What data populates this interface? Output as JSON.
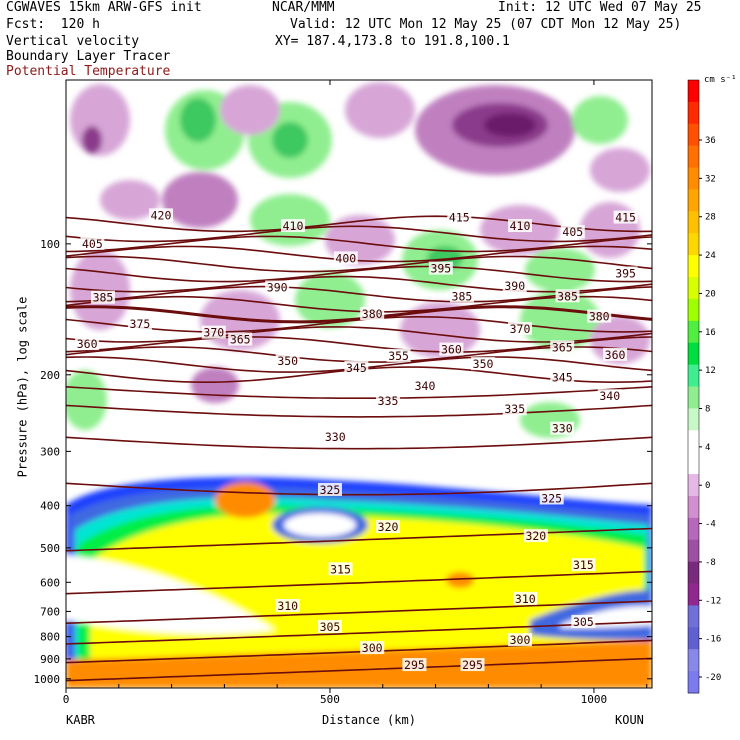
{
  "header": {
    "left_line1": "CGWAVES 15km ARW-GFS init",
    "left_line2": "Fcst:  120 h",
    "center_line1": "NCAR/MMM",
    "right_line1": "Init: 12 UTC Wed 07 May 25",
    "valid_line": "Valid: 12 UTC Mon 12 May 25 (07 CDT Mon 12 May 25)",
    "xy_line": "XY= 187.4,173.8 to 191.8,100.1",
    "field1": "Vertical velocity",
    "field2": "Boundary Layer Tracer",
    "field3": "Potential Temperature"
  },
  "colors": {
    "theta_line": "#6b0d0d",
    "field3_text": "#8b1a1a",
    "bl_blue_dark": "#1f3fff",
    "bl_blue": "#4169e1",
    "bl_cyan": "#00e5d4",
    "bl_green": "#00ee44",
    "bl_yellow": "#ffff00",
    "bl_orange": "#ff8c00",
    "w_green": "#90ee90",
    "w_purple": "#c080c0"
  },
  "chart_data": {
    "type": "heatmap",
    "xlabel": "Distance (km)",
    "ylabel": "Pressure (hPa), log scale",
    "x_ticks": [
      0,
      500,
      1000
    ],
    "xlim": [
      0,
      1110
    ],
    "y_ticks": [
      100,
      200,
      300,
      400,
      500,
      600,
      700,
      800,
      900,
      1000
    ],
    "y_scale": "log",
    "x_endpoints": [
      "KABR",
      "KOUN"
    ],
    "colorbar": {
      "unit": "cm s⁻¹",
      "ticks": [
        36,
        32,
        28,
        24,
        20,
        16,
        12,
        8,
        4,
        0,
        -4,
        -8,
        -12,
        -16,
        -20
      ],
      "colors": [
        "#ff0000",
        "#ff2a00",
        "#ff5000",
        "#ff7000",
        "#ff8c00",
        "#ffa500",
        "#ffc000",
        "#ffd700",
        "#ffff00",
        "#d8ff00",
        "#a0ff00",
        "#50ee40",
        "#00dd40",
        "#40ee90",
        "#90ee90",
        "#c8f8c8",
        "#ffffff",
        "#ffffff",
        "#e6b8e6",
        "#d090d0",
        "#b868b8",
        "#a050a0",
        "#7a2a7a",
        "#902890",
        "#7070d8",
        "#6060d0",
        "#8888e8",
        "#7b7bef"
      ]
    },
    "contour_labels": [
      {
        "x": 180,
        "p": 86,
        "v": "420"
      },
      {
        "x": 430,
        "p": 91,
        "v": "410"
      },
      {
        "x": 745,
        "p": 87,
        "v": "415"
      },
      {
        "x": 860,
        "p": 91,
        "v": "410"
      },
      {
        "x": 960,
        "p": 94,
        "v": "405"
      },
      {
        "x": 1060,
        "p": 87,
        "v": "415"
      },
      {
        "x": 50,
        "p": 100,
        "v": "405"
      },
      {
        "x": 530,
        "p": 108,
        "v": "400"
      },
      {
        "x": 710,
        "p": 114,
        "v": "395"
      },
      {
        "x": 1060,
        "p": 117,
        "v": "395"
      },
      {
        "x": 400,
        "p": 126,
        "v": "390"
      },
      {
        "x": 850,
        "p": 125,
        "v": "390"
      },
      {
        "x": 70,
        "p": 133,
        "v": "385"
      },
      {
        "x": 750,
        "p": 132,
        "v": "385"
      },
      {
        "x": 950,
        "p": 132,
        "v": "385"
      },
      {
        "x": 580,
        "p": 145,
        "v": "380"
      },
      {
        "x": 1010,
        "p": 147,
        "v": "380"
      },
      {
        "x": 140,
        "p": 153,
        "v": "375"
      },
      {
        "x": 280,
        "p": 160,
        "v": "370"
      },
      {
        "x": 860,
        "p": 157,
        "v": "370"
      },
      {
        "x": 40,
        "p": 170,
        "v": "360"
      },
      {
        "x": 330,
        "p": 166,
        "v": "365"
      },
      {
        "x": 730,
        "p": 175,
        "v": "360"
      },
      {
        "x": 940,
        "p": 173,
        "v": "365"
      },
      {
        "x": 1040,
        "p": 180,
        "v": "360"
      },
      {
        "x": 420,
        "p": 186,
        "v": "350"
      },
      {
        "x": 550,
        "p": 193,
        "v": "345"
      },
      {
        "x": 630,
        "p": 181,
        "v": "355"
      },
      {
        "x": 790,
        "p": 189,
        "v": "350"
      },
      {
        "x": 940,
        "p": 203,
        "v": "345"
      },
      {
        "x": 680,
        "p": 212,
        "v": "340"
      },
      {
        "x": 1030,
        "p": 224,
        "v": "340"
      },
      {
        "x": 610,
        "p": 230,
        "v": "335"
      },
      {
        "x": 850,
        "p": 240,
        "v": "335"
      },
      {
        "x": 510,
        "p": 278,
        "v": "330"
      },
      {
        "x": 940,
        "p": 266,
        "v": "330"
      },
      {
        "x": 500,
        "p": 368,
        "v": "325"
      },
      {
        "x": 920,
        "p": 385,
        "v": "325"
      },
      {
        "x": 610,
        "p": 448,
        "v": "320"
      },
      {
        "x": 890,
        "p": 470,
        "v": "320"
      },
      {
        "x": 520,
        "p": 560,
        "v": "315"
      },
      {
        "x": 980,
        "p": 548,
        "v": "315"
      },
      {
        "x": 420,
        "p": 680,
        "v": "310"
      },
      {
        "x": 870,
        "p": 655,
        "v": "310"
      },
      {
        "x": 500,
        "p": 760,
        "v": "305"
      },
      {
        "x": 980,
        "p": 740,
        "v": "305"
      },
      {
        "x": 580,
        "p": 850,
        "v": "300"
      },
      {
        "x": 860,
        "p": 815,
        "v": "300"
      },
      {
        "x": 660,
        "p": 930,
        "v": "295"
      },
      {
        "x": 770,
        "p": 930,
        "v": "295"
      }
    ],
    "theta_levels": [
      295,
      300,
      305,
      310,
      315,
      320,
      325,
      330,
      335,
      340,
      345,
      350,
      355,
      360,
      365,
      370,
      375,
      380,
      385,
      390,
      395,
      400,
      405,
      410,
      415,
      420
    ]
  }
}
